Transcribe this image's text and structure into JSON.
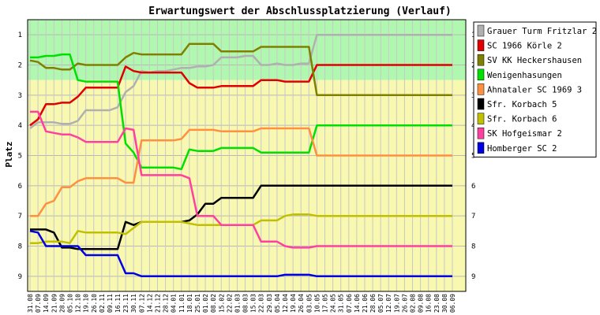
{
  "chart_data": {
    "type": "line",
    "title": "Erwartungswert der Abschlussplatzierung (Verlauf)",
    "ylabel": "Platz",
    "xlabel": "",
    "ylim": [
      9.5,
      0.5
    ],
    "y_reversed": true,
    "y_ticks": [
      1,
      2,
      3,
      4,
      5,
      6,
      7,
      8,
      9
    ],
    "zones": [
      {
        "from": 0.5,
        "to": 2.5,
        "color": "#b0f8b0"
      },
      {
        "from": 2.5,
        "to": 9.5,
        "color": "#f8f8b0"
      }
    ],
    "grid": true,
    "legend_position": "right",
    "categories": [
      "31.08",
      "07.09",
      "14.09",
      "21.09",
      "28.09",
      "05.10",
      "12.10",
      "19.10",
      "26.10",
      "02.11",
      "09.11",
      "16.11",
      "23.11",
      "30.11",
      "07.12",
      "14.12",
      "21.12",
      "28.12",
      "04.01",
      "11.01",
      "18.01",
      "25.01",
      "01.02",
      "08.02",
      "15.02",
      "22.02",
      "01.03",
      "08.03",
      "15.03",
      "22.03",
      "29.03",
      "05.04",
      "12.04",
      "19.04",
      "26.04",
      "03.05",
      "10.05",
      "17.05",
      "24.05",
      "31.05",
      "07.06",
      "14.06",
      "21.06",
      "28.06",
      "05.07",
      "12.07",
      "19.07",
      "26.07",
      "02.08",
      "09.08",
      "16.08",
      "23.08",
      "30.08",
      "06.09"
    ],
    "series": [
      {
        "name": "Grauer Turm Fritzlar 2",
        "color": "#b0b0b0",
        "values": [
          4.1,
          3.9,
          3.9,
          3.9,
          3.95,
          3.95,
          3.85,
          3.5,
          3.5,
          3.5,
          3.5,
          3.4,
          2.9,
          2.7,
          2.2,
          2.25,
          2.2,
          2.2,
          2.15,
          2.1,
          2.1,
          2.05,
          2.05,
          2.0,
          1.75,
          1.75,
          1.75,
          1.7,
          1.7,
          2.0,
          2.0,
          1.95,
          2.0,
          2.0,
          1.95,
          1.95,
          1.0,
          1.0,
          1.0,
          1.0,
          1.0,
          1.0,
          1.0,
          1.0,
          1.0,
          1.0,
          1.0,
          1.0,
          1.0,
          1.0,
          1.0,
          1.0,
          1.0,
          1.0
        ]
      },
      {
        "name": "SC 1966 Körle 2",
        "color": "#e00000",
        "values": [
          4.0,
          3.8,
          3.3,
          3.3,
          3.25,
          3.25,
          3.05,
          2.75,
          2.75,
          2.75,
          2.75,
          2.75,
          2.05,
          2.2,
          2.25,
          2.25,
          2.25,
          2.25,
          2.25,
          2.25,
          2.6,
          2.75,
          2.75,
          2.75,
          2.7,
          2.7,
          2.7,
          2.7,
          2.7,
          2.5,
          2.5,
          2.5,
          2.55,
          2.55,
          2.55,
          2.55,
          2.0,
          2.0,
          2.0,
          2.0,
          2.0,
          2.0,
          2.0,
          2.0,
          2.0,
          2.0,
          2.0,
          2.0,
          2.0,
          2.0,
          2.0,
          2.0,
          2.0,
          2.0
        ]
      },
      {
        "name": "SV KK Heckershausen",
        "color": "#808000",
        "values": [
          1.85,
          1.9,
          2.1,
          2.1,
          2.15,
          2.15,
          1.95,
          2.0,
          2.0,
          2.0,
          2.0,
          2.0,
          1.75,
          1.6,
          1.65,
          1.65,
          1.65,
          1.65,
          1.65,
          1.65,
          1.3,
          1.3,
          1.3,
          1.3,
          1.55,
          1.55,
          1.55,
          1.55,
          1.55,
          1.4,
          1.4,
          1.4,
          1.4,
          1.4,
          1.4,
          1.4,
          3.0,
          3.0,
          3.0,
          3.0,
          3.0,
          3.0,
          3.0,
          3.0,
          3.0,
          3.0,
          3.0,
          3.0,
          3.0,
          3.0,
          3.0,
          3.0,
          3.0,
          3.0
        ]
      },
      {
        "name": "Wenigenhasungen",
        "color": "#00e000",
        "values": [
          1.75,
          1.75,
          1.7,
          1.7,
          1.65,
          1.65,
          2.5,
          2.55,
          2.55,
          2.55,
          2.55,
          2.55,
          4.6,
          4.9,
          5.4,
          5.4,
          5.4,
          5.4,
          5.4,
          5.45,
          4.8,
          4.85,
          4.85,
          4.85,
          4.75,
          4.75,
          4.75,
          4.75,
          4.75,
          4.9,
          4.9,
          4.9,
          4.9,
          4.9,
          4.9,
          4.9,
          4.0,
          4.0,
          4.0,
          4.0,
          4.0,
          4.0,
          4.0,
          4.0,
          4.0,
          4.0,
          4.0,
          4.0,
          4.0,
          4.0,
          4.0,
          4.0,
          4.0,
          4.0
        ]
      },
      {
        "name": "Ahnataler SC 1969 3",
        "color": "#ff9040",
        "values": [
          7.0,
          7.0,
          6.6,
          6.5,
          6.05,
          6.05,
          5.85,
          5.75,
          5.75,
          5.75,
          5.75,
          5.75,
          5.9,
          5.9,
          4.5,
          4.5,
          4.5,
          4.5,
          4.5,
          4.45,
          4.15,
          4.15,
          4.15,
          4.15,
          4.2,
          4.2,
          4.2,
          4.2,
          4.2,
          4.1,
          4.1,
          4.1,
          4.1,
          4.1,
          4.1,
          4.1,
          5.0,
          5.0,
          5.0,
          5.0,
          5.0,
          5.0,
          5.0,
          5.0,
          5.0,
          5.0,
          5.0,
          5.0,
          5.0,
          5.0,
          5.0,
          5.0,
          5.0,
          5.0
        ]
      },
      {
        "name": "Sfr. Korbach 5",
        "color": "#000000",
        "values": [
          7.45,
          7.45,
          7.45,
          7.55,
          8.05,
          8.05,
          8.1,
          8.1,
          8.1,
          8.1,
          8.1,
          8.1,
          7.2,
          7.3,
          7.2,
          7.2,
          7.2,
          7.2,
          7.2,
          7.2,
          7.15,
          6.95,
          6.6,
          6.6,
          6.4,
          6.4,
          6.4,
          6.4,
          6.4,
          6.0,
          6.0,
          6.0,
          6.0,
          6.0,
          6.0,
          6.0,
          6.0,
          6.0,
          6.0,
          6.0,
          6.0,
          6.0,
          6.0,
          6.0,
          6.0,
          6.0,
          6.0,
          6.0,
          6.0,
          6.0,
          6.0,
          6.0,
          6.0,
          6.0
        ]
      },
      {
        "name": "Sfr. Korbach 6",
        "color": "#c0c000",
        "values": [
          7.9,
          7.9,
          7.85,
          7.85,
          7.85,
          7.9,
          7.5,
          7.55,
          7.55,
          7.55,
          7.55,
          7.55,
          7.6,
          7.4,
          7.2,
          7.2,
          7.2,
          7.2,
          7.2,
          7.2,
          7.25,
          7.3,
          7.3,
          7.3,
          7.3,
          7.3,
          7.3,
          7.3,
          7.3,
          7.15,
          7.15,
          7.15,
          7.0,
          6.95,
          6.95,
          6.95,
          7.0,
          7.0,
          7.0,
          7.0,
          7.0,
          7.0,
          7.0,
          7.0,
          7.0,
          7.0,
          7.0,
          7.0,
          7.0,
          7.0,
          7.0,
          7.0,
          7.0,
          7.0
        ]
      },
      {
        "name": "SK Hofgeismar 2",
        "color": "#ff40a0",
        "values": [
          3.55,
          3.55,
          4.2,
          4.25,
          4.3,
          4.3,
          4.4,
          4.55,
          4.55,
          4.55,
          4.55,
          4.55,
          4.1,
          4.15,
          5.65,
          5.65,
          5.65,
          5.65,
          5.65,
          5.65,
          5.75,
          7.0,
          7.0,
          7.0,
          7.3,
          7.3,
          7.3,
          7.3,
          7.3,
          7.85,
          7.85,
          7.85,
          8.0,
          8.05,
          8.05,
          8.05,
          8.0,
          8.0,
          8.0,
          8.0,
          8.0,
          8.0,
          8.0,
          8.0,
          8.0,
          8.0,
          8.0,
          8.0,
          8.0,
          8.0,
          8.0,
          8.0,
          8.0,
          8.0
        ]
      },
      {
        "name": "Homberger SC 2",
        "color": "#0000e0",
        "values": [
          7.5,
          7.55,
          8.0,
          8.0,
          8.0,
          8.0,
          8.0,
          8.3,
          8.3,
          8.3,
          8.3,
          8.3,
          8.9,
          8.9,
          9.0,
          9.0,
          9.0,
          9.0,
          9.0,
          9.0,
          9.0,
          9.0,
          9.0,
          9.0,
          9.0,
          9.0,
          9.0,
          9.0,
          9.0,
          9.0,
          9.0,
          9.0,
          8.95,
          8.95,
          8.95,
          8.95,
          9.0,
          9.0,
          9.0,
          9.0,
          9.0,
          9.0,
          9.0,
          9.0,
          9.0,
          9.0,
          9.0,
          9.0,
          9.0,
          9.0,
          9.0,
          9.0,
          9.0,
          9.0
        ]
      }
    ]
  }
}
